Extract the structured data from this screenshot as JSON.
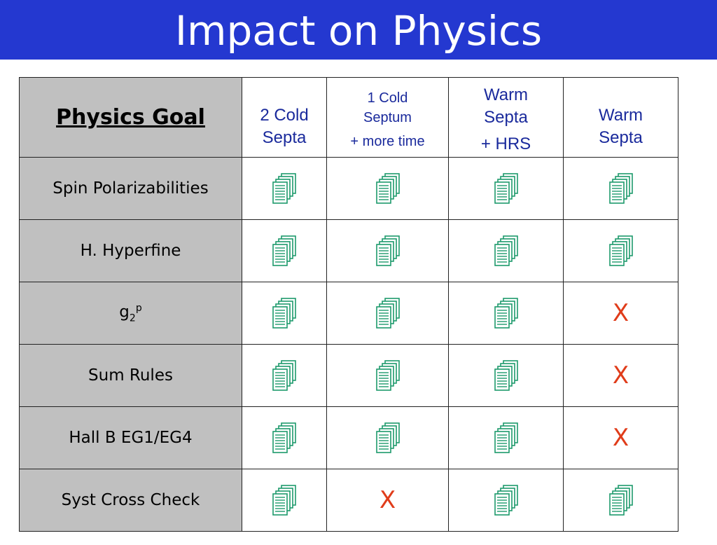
{
  "title": "Impact on Physics",
  "colors": {
    "title_bar": "#2438d0",
    "goal_bg": "#c0c0c0",
    "icon": "#1d9a6c",
    "x_mark": "#e03c1a",
    "header_text": "#1a2a9c"
  },
  "table": {
    "goal_header": "Physics Goal",
    "columns": [
      {
        "lines": [
          "2 Cold",
          "Septa"
        ]
      },
      {
        "lines": [
          "1 Cold",
          "Septum",
          "+ more time"
        ]
      },
      {
        "lines": [
          "Warm",
          "Septa",
          "+ HRS"
        ]
      },
      {
        "lines": [
          "Warm",
          "Septa"
        ]
      }
    ],
    "rows": [
      {
        "goal": "Spin Polarizabilities",
        "marks": [
          "doc-icon",
          "doc-icon",
          "doc-icon",
          "doc-icon"
        ]
      },
      {
        "goal": "H. Hyperfine",
        "marks": [
          "doc-icon",
          "doc-icon",
          "doc-icon",
          "doc-icon"
        ]
      },
      {
        "goal_base": "g",
        "goal_sub": "2",
        "goal_sup": "p",
        "marks": [
          "doc-icon",
          "doc-icon",
          "doc-icon",
          "X"
        ]
      },
      {
        "goal": "Sum Rules",
        "marks": [
          "doc-icon",
          "doc-icon",
          "doc-icon",
          "X"
        ]
      },
      {
        "goal": "Hall B EG1/EG4",
        "marks": [
          "doc-icon",
          "doc-icon",
          "doc-icon",
          "X"
        ]
      },
      {
        "goal": "Syst Cross Check",
        "marks": [
          "doc-icon",
          "X",
          "doc-icon",
          "doc-icon"
        ]
      }
    ]
  }
}
